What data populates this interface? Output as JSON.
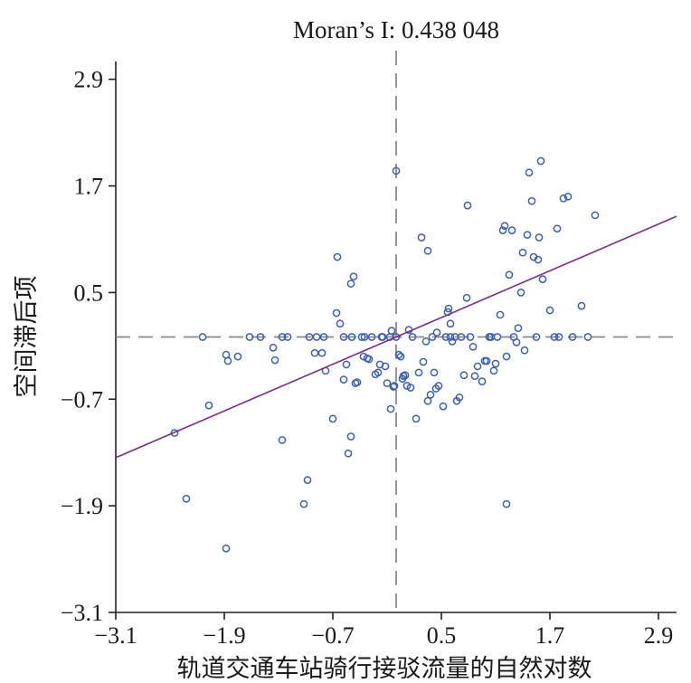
{
  "chart_data": {
    "type": "scatter",
    "title": "Moran’s I: 0.438 048",
    "xlabel": "轨道交通车站骑行接驳流量的自然对数",
    "ylabel": "空间滞后项",
    "xlim": [
      -3.1,
      3.1
    ],
    "ylim": [
      -3.1,
      3.1
    ],
    "x_ticks": [
      "−3.1",
      "−1.9",
      "−0.7",
      "0.5",
      "1.7",
      "2.9"
    ],
    "y_ticks": [
      "−3.1",
      "−1.9",
      "−0.7",
      "0.5",
      "1.7",
      "2.9"
    ],
    "x_tick_values": [
      -3.1,
      -1.9,
      -0.7,
      0.5,
      1.7,
      2.9
    ],
    "y_tick_values": [
      -3.1,
      -1.9,
      -0.7,
      0.5,
      1.7,
      2.9
    ],
    "reference_lines": {
      "vertical_x": 0.0,
      "horizontal_y": 0.0
    },
    "regression": {
      "slope": 0.438048,
      "intercept": 0.0
    },
    "colors": {
      "points": "#3a5fb8",
      "fit_line": "#7b2d8e",
      "reference": "#8a8a8a"
    },
    "points": [
      [
        -2.45,
        -1.08
      ],
      [
        -2.32,
        -1.82
      ],
      [
        -2.07,
        -0.77
      ],
      [
        -2.14,
        0.0
      ],
      [
        -1.88,
        -0.2
      ],
      [
        -1.86,
        -0.27
      ],
      [
        -1.75,
        -0.22
      ],
      [
        -1.62,
        0.0
      ],
      [
        -1.5,
        0.0
      ],
      [
        -1.36,
        -0.12
      ],
      [
        -1.34,
        -0.26
      ],
      [
        -1.26,
        -1.16
      ],
      [
        -1.88,
        -2.38
      ],
      [
        -1.2,
        0.0
      ],
      [
        -1.02,
        -1.88
      ],
      [
        -0.98,
        -1.61
      ],
      [
        -0.96,
        0.0
      ],
      [
        -0.9,
        -0.18
      ],
      [
        -0.8,
        0.0
      ],
      [
        -0.82,
        -0.18
      ],
      [
        -0.78,
        -0.38
      ],
      [
        -0.7,
        -0.92
      ],
      [
        -0.66,
        0.27
      ],
      [
        -0.62,
        0.15
      ],
      [
        -0.65,
        0.9
      ],
      [
        -0.58,
        0.0
      ],
      [
        -0.55,
        -0.31
      ],
      [
        -0.53,
        -1.31
      ],
      [
        -0.5,
        -1.12
      ],
      [
        -0.5,
        0.6
      ],
      [
        -0.47,
        0.68
      ],
      [
        -0.45,
        -0.52
      ],
      [
        -0.43,
        -0.51
      ],
      [
        -0.38,
        0.0
      ],
      [
        -0.35,
        0.0
      ],
      [
        -0.32,
        -0.24
      ],
      [
        -0.3,
        -0.25
      ],
      [
        -0.27,
        0.0
      ],
      [
        -0.23,
        -0.42
      ],
      [
        -0.2,
        -0.4
      ],
      [
        -0.18,
        -0.31
      ],
      [
        -0.15,
        0.0
      ],
      [
        -0.12,
        -0.33
      ],
      [
        -0.1,
        -0.52
      ],
      [
        -0.07,
        0.0
      ],
      [
        -0.06,
        -0.81
      ],
      [
        -0.03,
        -0.56
      ],
      [
        -0.02,
        -0.55
      ],
      [
        0.0,
        0.0
      ],
      [
        0.03,
        -0.2
      ],
      [
        0.05,
        -0.22
      ],
      [
        0.07,
        -0.47
      ],
      [
        0.08,
        -0.44
      ],
      [
        0.1,
        -0.43
      ],
      [
        0.12,
        -0.55
      ],
      [
        0.14,
        0.08
      ],
      [
        0.16,
        -0.57
      ],
      [
        0.18,
        0.0
      ],
      [
        0.22,
        -0.92
      ],
      [
        0.25,
        -0.4
      ],
      [
        0.28,
        1.12
      ],
      [
        0.3,
        -0.28
      ],
      [
        0.33,
        -0.05
      ],
      [
        0.35,
        -0.72
      ],
      [
        0.38,
        -0.65
      ],
      [
        0.4,
        0.0
      ],
      [
        0.42,
        -0.4
      ],
      [
        0.44,
        -0.58
      ],
      [
        0.45,
        0.05
      ],
      [
        0.47,
        -0.55
      ],
      [
        0.0,
        1.87
      ],
      [
        0.35,
        0.97
      ],
      [
        0.52,
        -0.78
      ],
      [
        0.55,
        0.0
      ],
      [
        0.57,
        0.28
      ],
      [
        0.58,
        0.32
      ],
      [
        0.6,
        0.0
      ],
      [
        0.6,
        0.15
      ],
      [
        0.62,
        -0.05
      ],
      [
        0.65,
        0.0
      ],
      [
        0.67,
        -0.72
      ],
      [
        0.7,
        -0.68
      ],
      [
        0.72,
        0.0
      ],
      [
        0.75,
        -0.43
      ],
      [
        0.78,
        0.44
      ],
      [
        0.79,
        1.48
      ],
      [
        0.82,
        0.0
      ],
      [
        0.85,
        -0.11
      ],
      [
        0.87,
        -0.44
      ],
      [
        0.9,
        -0.33
      ],
      [
        0.95,
        -0.5
      ],
      [
        1.0,
        -0.27
      ],
      [
        1.03,
        0.0
      ],
      [
        1.05,
        0.0
      ],
      [
        1.08,
        -0.38
      ],
      [
        1.1,
        -0.3
      ],
      [
        1.12,
        0.0
      ],
      [
        1.15,
        0.25
      ],
      [
        1.18,
        1.2
      ],
      [
        1.2,
        1.25
      ],
      [
        1.22,
        -0.22
      ],
      [
        1.25,
        0.7
      ],
      [
        1.28,
        1.2
      ],
      [
        1.3,
        0.0
      ],
      [
        1.33,
        -0.06
      ],
      [
        1.35,
        0.1
      ],
      [
        1.38,
        0.5
      ],
      [
        1.4,
        0.95
      ],
      [
        1.42,
        -0.15
      ],
      [
        1.45,
        1.15
      ],
      [
        1.47,
        1.85
      ],
      [
        1.5,
        1.53
      ],
      [
        1.52,
        0.9
      ],
      [
        1.55,
        0.0
      ],
      [
        1.57,
        0.87
      ],
      [
        1.58,
        1.12
      ],
      [
        1.6,
        1.98
      ],
      [
        1.62,
        0.65
      ],
      [
        1.7,
        0.3
      ],
      [
        1.75,
        0.0
      ],
      [
        1.78,
        1.22
      ],
      [
        1.8,
        0.0
      ],
      [
        1.85,
        1.56
      ],
      [
        1.9,
        1.58
      ],
      [
        1.95,
        0.0
      ],
      [
        2.05,
        0.35
      ],
      [
        2.12,
        0.0
      ],
      [
        2.2,
        1.37
      ],
      [
        1.22,
        -1.88
      ],
      [
        -0.88,
        0.0
      ],
      [
        -1.26,
        0.0
      ],
      [
        -0.49,
        0.0
      ],
      [
        -0.36,
        -0.22
      ],
      [
        -0.05,
        0.07
      ],
      [
        -0.16,
        0.0
      ],
      [
        0.98,
        -0.27
      ],
      [
        -0.58,
        -0.48
      ]
    ]
  }
}
